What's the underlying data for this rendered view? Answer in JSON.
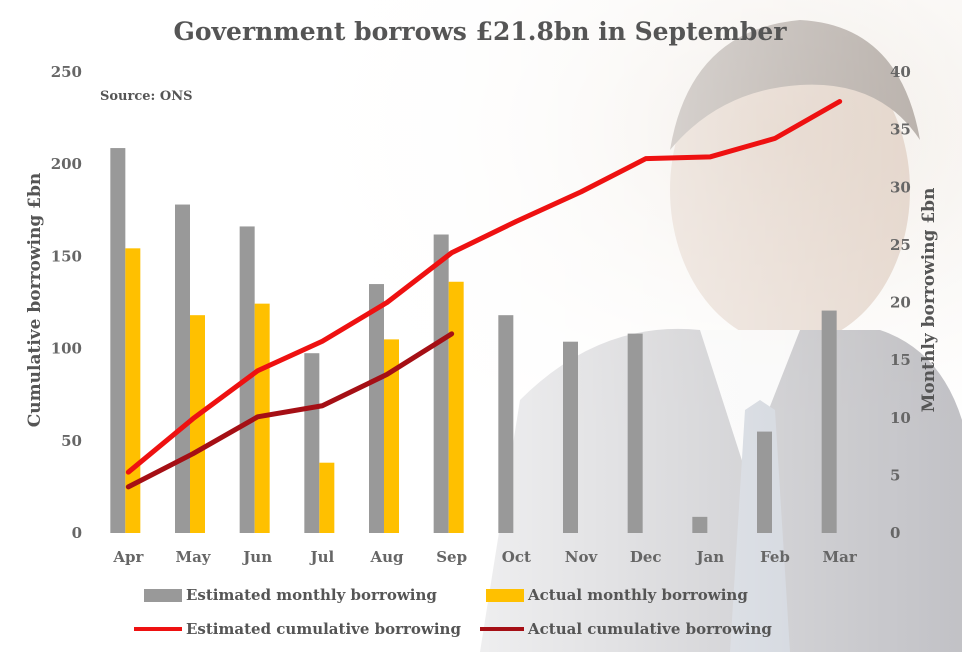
{
  "chart_data": {
    "type": "bar",
    "title": "Government borrows £21.8bn in September",
    "source": "Source: ONS",
    "categories": [
      "Apr",
      "May",
      "Jun",
      "Jul",
      "Aug",
      "Sep",
      "Oct",
      "Nov",
      "Dec",
      "Jan",
      "Feb",
      "Mar"
    ],
    "ylabel_left": "Cumulative borrowing £bn",
    "ylabel_right": "Monthly borrowing £bn",
    "ylim_left": [
      0,
      250
    ],
    "ylim_right": [
      0,
      40
    ],
    "yticks_left": [
      0,
      50,
      100,
      150,
      200,
      250
    ],
    "yticks_right": [
      0,
      5,
      10,
      15,
      20,
      25,
      30,
      35,
      40
    ],
    "grid": false,
    "legend_position": "bottom",
    "series": [
      {
        "name": "Estimated monthly borrowing",
        "kind": "bar",
        "axis": "right",
        "color": "#999999",
        "values": [
          33.4,
          28.5,
          26.6,
          15.6,
          21.6,
          25.9,
          18.9,
          16.6,
          17.3,
          1.4,
          8.8,
          19.3
        ]
      },
      {
        "name": "Actual monthly borrowing",
        "kind": "bar",
        "axis": "right",
        "color": "#FFC000",
        "values": [
          24.7,
          18.9,
          19.9,
          6.1,
          16.8,
          21.8,
          null,
          null,
          null,
          null,
          null,
          null
        ]
      },
      {
        "name": "Estimated cumulative borrowing",
        "kind": "line",
        "axis": "left",
        "color": "#EE1111",
        "values": [
          33,
          62,
          88,
          104,
          125,
          152,
          169,
          185,
          203,
          204,
          214,
          234
        ]
      },
      {
        "name": "Actual cumulative borrowing",
        "kind": "line",
        "axis": "left",
        "color": "#A50F15",
        "values": [
          25,
          43,
          63,
          69,
          86,
          108,
          null,
          null,
          null,
          null,
          null,
          null
        ]
      }
    ]
  }
}
